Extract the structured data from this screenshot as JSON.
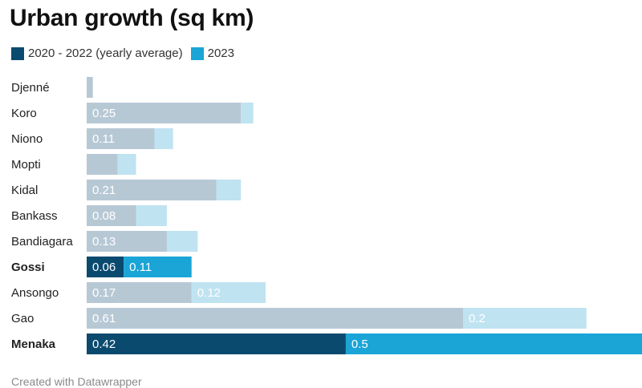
{
  "chart_data": {
    "type": "bar",
    "title": "Urban growth (sq km)",
    "categories": [
      "Djenné",
      "Koro",
      "Niono",
      "Mopti",
      "Kidal",
      "Bankass",
      "Bandiagara",
      "Gossi",
      "Ansongo",
      "Gao",
      "Menaka"
    ],
    "highlighted": [
      "Gossi",
      "Menaka"
    ],
    "series": [
      {
        "name": "2020 - 2022 (yearly average)",
        "values": [
          0.01,
          0.25,
          0.11,
          0.05,
          0.21,
          0.08,
          0.13,
          0.06,
          0.17,
          0.61,
          0.42
        ],
        "labels": [
          "",
          "0.25",
          "0.11",
          "",
          "0.21",
          "0.08",
          "0.13",
          "0.06",
          "0.17",
          "0.61",
          "0.42"
        ]
      },
      {
        "name": "2023",
        "values": [
          0.0,
          0.02,
          0.03,
          0.03,
          0.04,
          0.05,
          0.05,
          0.11,
          0.12,
          0.2,
          0.5
        ],
        "labels": [
          "",
          "",
          "",
          "",
          "",
          "",
          "",
          "0.11",
          "0.12",
          "0.2",
          "0.5"
        ]
      }
    ],
    "stacked": true,
    "xlim": [
      0,
      0.9
    ],
    "colors": {
      "series1_highlight": "#0b4a6f",
      "series2_highlight": "#1aa5d6",
      "series1_muted": "#b7c8d5",
      "series2_muted": "#bfe3f1"
    },
    "legend_position": "top-left",
    "grid": false
  },
  "footer": "Created with Datawrapper"
}
